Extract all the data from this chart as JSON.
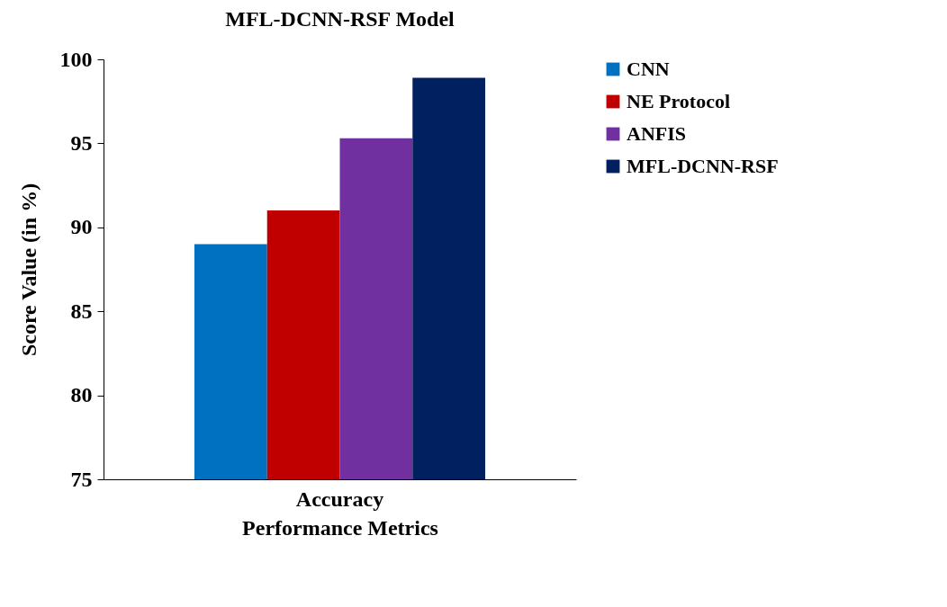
{
  "chart_data": {
    "type": "bar",
    "title": "MFL-DCNN-RSF Model",
    "xlabel": "Performance Metrics",
    "ylabel": "Score Value (in %)",
    "categories": [
      "Accuracy"
    ],
    "series": [
      {
        "name": "CNN",
        "color": "#0070c0",
        "values": [
          89
        ]
      },
      {
        "name": "NE Protocol",
        "color": "#c00000",
        "values": [
          91
        ]
      },
      {
        "name": "ANFIS",
        "color": "#7030a0",
        "values": [
          95.3
        ]
      },
      {
        "name": "MFL-DCNN-RSF",
        "color": "#002060",
        "values": [
          98.9
        ]
      }
    ],
    "ylim": [
      75,
      100
    ],
    "yticks": [
      75,
      80,
      85,
      90,
      95,
      100
    ],
    "grid": false,
    "legend": "right"
  }
}
